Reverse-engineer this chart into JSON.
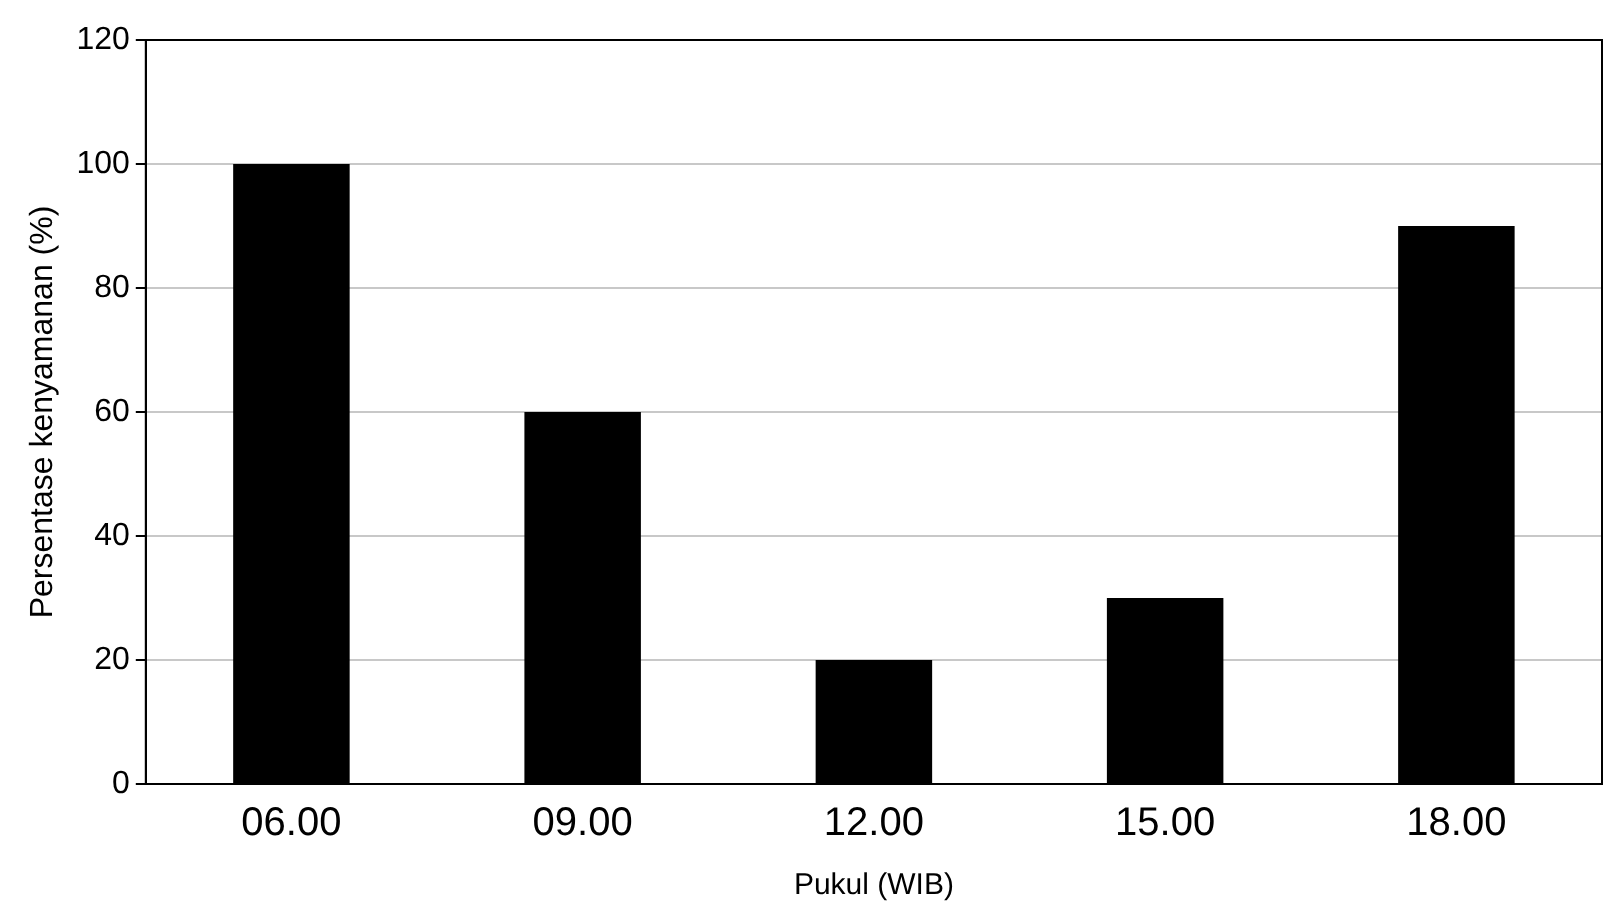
{
  "chart_data": {
    "type": "bar",
    "xlabel": "Pukul (WIB)",
    "ylabel": "Persentase kenyamanan (%)",
    "categories": [
      "06.00",
      "09.00",
      "12.00",
      "15.00",
      "18.00"
    ],
    "values": [
      100,
      60,
      20,
      30,
      90
    ],
    "color": "#000000",
    "ylim": [
      0,
      120
    ],
    "yticks": [
      0,
      20,
      40,
      60,
      80,
      100,
      120
    ],
    "grid": "y",
    "legend": false
  }
}
